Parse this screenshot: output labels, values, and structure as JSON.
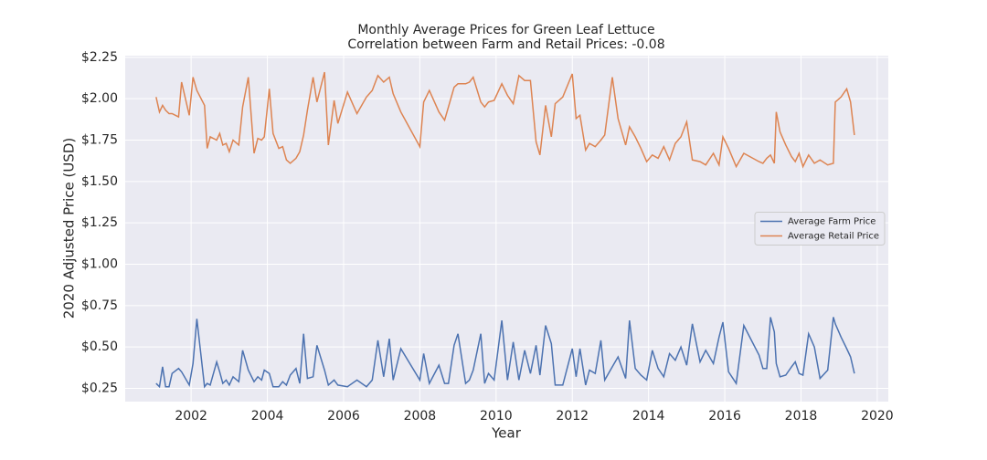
{
  "chart_data": {
    "type": "line",
    "title": "Monthly Average Prices for Green Leaf Lettuce",
    "subtitle": "Correlation between Farm and Retail Prices: -0.08",
    "x_label": "Year",
    "y_label": "2020 Adjusted Price (USD)",
    "xlim": [
      2000.27,
      2020.29
    ],
    "ylim": [
      0.17,
      2.26
    ],
    "xticks": [
      2002,
      2004,
      2006,
      2008,
      2010,
      2012,
      2014,
      2016,
      2018,
      2020
    ],
    "yticks": [
      {
        "value": 0.25,
        "label": "$0.25"
      },
      {
        "value": 0.5,
        "label": "$0.50"
      },
      {
        "value": 0.75,
        "label": "$0.75"
      },
      {
        "value": 1.0,
        "label": "$1.00"
      },
      {
        "value": 1.25,
        "label": "$1.25"
      },
      {
        "value": 1.5,
        "label": "$1.50"
      },
      {
        "value": 1.75,
        "label": "$1.75"
      },
      {
        "value": 2.0,
        "label": "$2.00"
      },
      {
        "value": 2.25,
        "label": "$2.25"
      }
    ],
    "grid": true,
    "legend": "center right",
    "x": [
      2001.08,
      2001.17,
      2001.25,
      2001.33,
      2001.42,
      2001.5,
      2001.67,
      2001.75,
      2001.95,
      2002.05,
      2002.15,
      2002.35,
      2002.42,
      2002.5,
      2002.67,
      2002.75,
      2002.83,
      2002.92,
      2003.0,
      2003.1,
      2003.25,
      2003.35,
      2003.5,
      2003.65,
      2003.75,
      2003.85,
      2003.92,
      2004.05,
      2004.15,
      2004.3,
      2004.4,
      2004.5,
      2004.6,
      2004.75,
      2004.85,
      2004.95,
      2005.05,
      2005.2,
      2005.3,
      2005.5,
      2005.6,
      2005.75,
      2005.85,
      2006.1,
      2006.35,
      2006.6,
      2006.75,
      2006.9,
      2007.05,
      2007.2,
      2007.3,
      2007.5,
      2008.0,
      2008.1,
      2008.25,
      2008.5,
      2008.65,
      2008.75,
      2008.9,
      2009.0,
      2009.2,
      2009.3,
      2009.4,
      2009.6,
      2009.7,
      2009.8,
      2009.95,
      2010.15,
      2010.3,
      2010.45,
      2010.6,
      2010.75,
      2010.9,
      2011.05,
      2011.15,
      2011.3,
      2011.45,
      2011.55,
      2011.75,
      2012.0,
      2012.1,
      2012.2,
      2012.35,
      2012.45,
      2012.6,
      2012.75,
      2012.85,
      2013.05,
      2013.2,
      2013.4,
      2013.5,
      2013.65,
      2013.8,
      2013.95,
      2014.1,
      2014.25,
      2014.4,
      2014.55,
      2014.7,
      2014.85,
      2015.0,
      2015.15,
      2015.35,
      2015.5,
      2015.7,
      2015.85,
      2015.95,
      2016.1,
      2016.3,
      2016.5,
      2016.9,
      2017.0,
      2017.1,
      2017.2,
      2017.3,
      2017.35,
      2017.45,
      2017.6,
      2017.75,
      2017.85,
      2017.95,
      2018.05,
      2018.2,
      2018.35,
      2018.5,
      2018.7,
      2018.85,
      2018.9,
      2019.05,
      2019.2,
      2019.3,
      2019.4
    ],
    "series": [
      {
        "name": "Average Farm Price",
        "color": "#4c72b0",
        "values": [
          0.28,
          0.26,
          0.38,
          0.26,
          0.26,
          0.34,
          0.37,
          0.35,
          0.27,
          0.4,
          0.67,
          0.26,
          0.28,
          0.27,
          0.41,
          0.35,
          0.28,
          0.3,
          0.27,
          0.32,
          0.29,
          0.48,
          0.36,
          0.29,
          0.32,
          0.3,
          0.36,
          0.34,
          0.26,
          0.26,
          0.29,
          0.27,
          0.33,
          0.37,
          0.28,
          0.58,
          0.31,
          0.32,
          0.51,
          0.36,
          0.27,
          0.3,
          0.27,
          0.26,
          0.3,
          0.26,
          0.3,
          0.54,
          0.32,
          0.55,
          0.3,
          0.49,
          0.3,
          0.46,
          0.28,
          0.39,
          0.28,
          0.28,
          0.51,
          0.58,
          0.28,
          0.3,
          0.36,
          0.58,
          0.28,
          0.34,
          0.3,
          0.66,
          0.3,
          0.53,
          0.3,
          0.48,
          0.34,
          0.51,
          0.33,
          0.63,
          0.52,
          0.27,
          0.27,
          0.49,
          0.32,
          0.49,
          0.27,
          0.36,
          0.34,
          0.54,
          0.3,
          0.38,
          0.44,
          0.31,
          0.66,
          0.37,
          0.33,
          0.3,
          0.48,
          0.37,
          0.32,
          0.46,
          0.42,
          0.5,
          0.39,
          0.64,
          0.41,
          0.48,
          0.4,
          0.56,
          0.65,
          0.35,
          0.28,
          0.63,
          0.45,
          0.37,
          0.37,
          0.68,
          0.59,
          0.4,
          0.32,
          0.33,
          0.38,
          0.41,
          0.34,
          0.33,
          0.58,
          0.5,
          0.31,
          0.36,
          0.68,
          0.64,
          0.56,
          0.49,
          0.44,
          0.34
        ]
      },
      {
        "name": "Average Retail Price",
        "color": "#dd8452",
        "values": [
          2.01,
          1.92,
          1.96,
          1.93,
          1.91,
          1.91,
          1.89,
          2.1,
          1.9,
          2.13,
          2.05,
          1.96,
          1.7,
          1.77,
          1.75,
          1.79,
          1.72,
          1.73,
          1.68,
          1.75,
          1.72,
          1.95,
          2.13,
          1.67,
          1.76,
          1.75,
          1.77,
          2.06,
          1.79,
          1.7,
          1.71,
          1.63,
          1.61,
          1.64,
          1.68,
          1.78,
          1.93,
          2.13,
          1.98,
          2.16,
          1.72,
          1.99,
          1.85,
          2.04,
          1.91,
          2.01,
          2.05,
          2.14,
          2.1,
          2.13,
          2.03,
          1.92,
          1.71,
          1.98,
          2.05,
          1.92,
          1.87,
          1.95,
          2.07,
          2.09,
          2.09,
          2.1,
          2.13,
          1.98,
          1.95,
          1.98,
          1.99,
          2.09,
          2.02,
          1.97,
          2.14,
          2.11,
          2.11,
          1.74,
          1.66,
          1.96,
          1.77,
          1.97,
          2.01,
          2.15,
          1.88,
          1.9,
          1.69,
          1.73,
          1.71,
          1.75,
          1.78,
          2.13,
          1.88,
          1.72,
          1.83,
          1.77,
          1.7,
          1.62,
          1.66,
          1.64,
          1.71,
          1.63,
          1.73,
          1.77,
          1.86,
          1.63,
          1.62,
          1.6,
          1.67,
          1.6,
          1.77,
          1.7,
          1.59,
          1.67,
          1.62,
          1.61,
          1.64,
          1.66,
          1.61,
          1.92,
          1.8,
          1.72,
          1.65,
          1.62,
          1.67,
          1.59,
          1.66,
          1.61,
          1.63,
          1.6,
          1.61,
          1.98,
          2.01,
          2.06,
          1.98,
          1.78
        ]
      }
    ]
  }
}
